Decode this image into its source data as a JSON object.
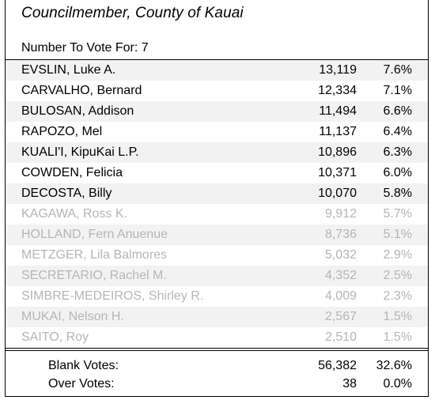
{
  "title": "Councilmember, County of Kauai",
  "vote_for": "Number To Vote For:  7",
  "candidates": [
    {
      "name": "EVSLIN, Luke A.",
      "votes": "13,119",
      "pct": "7.6%",
      "elected": true
    },
    {
      "name": "CARVALHO, Bernard",
      "votes": "12,334",
      "pct": "7.1%",
      "elected": true
    },
    {
      "name": "BULOSAN, Addison",
      "votes": "11,494",
      "pct": "6.6%",
      "elected": true
    },
    {
      "name": "RAPOZO, Mel",
      "votes": "11,137",
      "pct": "6.4%",
      "elected": true
    },
    {
      "name": "KUALI'I, KipuKai L.P.",
      "votes": "10,896",
      "pct": "6.3%",
      "elected": true
    },
    {
      "name": "COWDEN, Felicia",
      "votes": "10,371",
      "pct": "6.0%",
      "elected": true
    },
    {
      "name": "DECOSTA, Billy",
      "votes": "10,070",
      "pct": "5.8%",
      "elected": true
    },
    {
      "name": "KAGAWA, Ross K.",
      "votes": "9,912",
      "pct": "5.7%",
      "elected": false
    },
    {
      "name": "HOLLAND, Fern Anuenue",
      "votes": "8,736",
      "pct": "5.1%",
      "elected": false
    },
    {
      "name": "METZGER, Lila Balmores",
      "votes": "5,032",
      "pct": "2.9%",
      "elected": false
    },
    {
      "name": "SECRETARIO, Rachel M.",
      "votes": "4,352",
      "pct": "2.5%",
      "elected": false
    },
    {
      "name": "SIMBRE-MEDEIROS, Shirley R.",
      "votes": "4,009",
      "pct": "2.3%",
      "elected": false
    },
    {
      "name": "MUKAI, Nelson H.",
      "votes": "2,567",
      "pct": "1.5%",
      "elected": false
    },
    {
      "name": "SAITO, Roy",
      "votes": "2,510",
      "pct": "1.5%",
      "elected": false
    }
  ],
  "summary": [
    {
      "label": "Blank Votes:",
      "votes": "56,382",
      "pct": "32.6%"
    },
    {
      "label": "Over Votes:",
      "votes": "38",
      "pct": "0.0%"
    }
  ],
  "colors": {
    "row_shade": "#f2f2f2",
    "loser_text": "#b5b5b5"
  }
}
